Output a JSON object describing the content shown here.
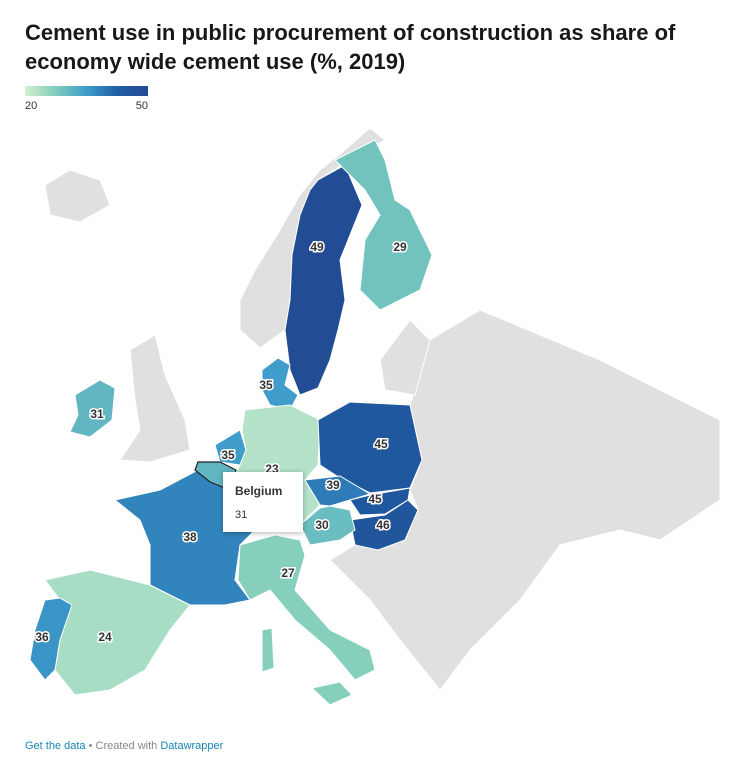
{
  "chart_data": {
    "type": "map",
    "title": "Cement use in public procurement of construction as share of economy wide cement use (%, 2019)",
    "legend": {
      "ticks": [
        20,
        50
      ],
      "colors": [
        "#d5f0d1",
        "#7fcdbb",
        "#3f9ccb",
        "#1f5fa6",
        "#234a91"
      ]
    },
    "values": [
      49,
      29,
      35,
      31,
      35,
      23,
      45,
      39,
      45,
      46,
      30,
      38,
      27,
      24,
      36
    ],
    "tooltip": {
      "title": "Belgium",
      "value": 31
    }
  },
  "footer": {
    "source": "Get the data",
    "credit": "• Created with",
    "tool": "Datawrapper"
  }
}
